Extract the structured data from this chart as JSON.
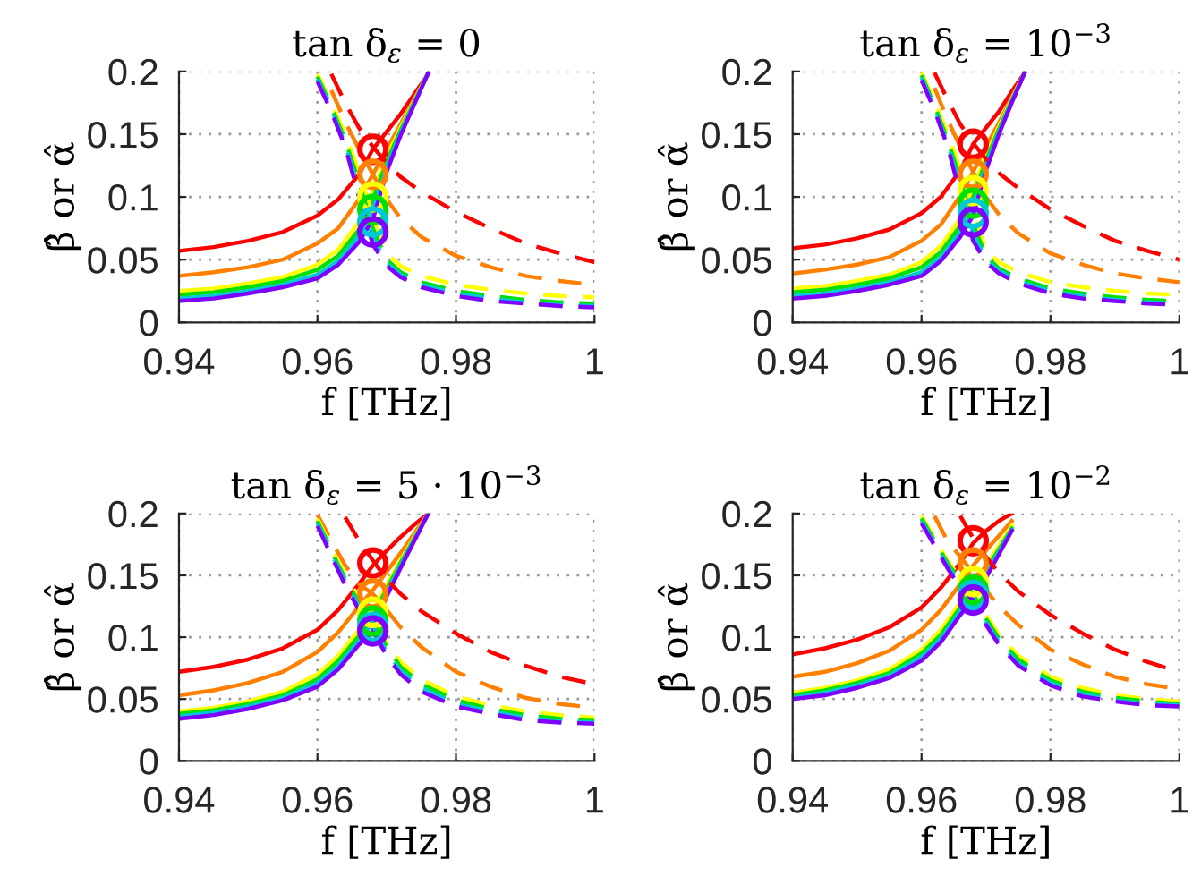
{
  "chart_data": [
    {
      "type": "line",
      "title": "tan δ$_{ε}$ = 0",
      "xlabel": "f [THz]",
      "ylabel": "β̂ or α̂",
      "xlim": [
        0.94,
        1.0
      ],
      "ylim": [
        0,
        0.2
      ],
      "xticks": [
        0.94,
        0.96,
        0.98,
        1
      ],
      "yticks": [
        0,
        0.05,
        0.1,
        0.15,
        0.2
      ],
      "grid": true,
      "series": [
        {
          "color": "#ff0000",
          "line_style": "solid",
          "x": [
            0.94,
            0.945,
            0.95,
            0.955,
            0.96,
            0.963,
            0.966,
            0.968,
            0.97,
            0.972,
            0.974,
            0.976
          ],
          "values": [
            0.057,
            0.06,
            0.065,
            0.072,
            0.085,
            0.098,
            0.118,
            0.138,
            0.152,
            0.166,
            0.182,
            0.198
          ]
        },
        {
          "color": "#ff8000",
          "line_style": "solid",
          "x": [
            0.94,
            0.945,
            0.95,
            0.955,
            0.96,
            0.963,
            0.966,
            0.968,
            0.97,
            0.972,
            0.974,
            0.976
          ],
          "values": [
            0.037,
            0.04,
            0.044,
            0.05,
            0.063,
            0.075,
            0.098,
            0.118,
            0.138,
            0.158,
            0.178,
            0.198
          ]
        },
        {
          "color": "#ffff00",
          "line_style": "solid",
          "x": [
            0.94,
            0.945,
            0.95,
            0.955,
            0.96,
            0.963,
            0.966,
            0.968,
            0.97,
            0.972,
            0.974,
            0.976
          ],
          "values": [
            0.025,
            0.027,
            0.031,
            0.036,
            0.046,
            0.058,
            0.08,
            0.105,
            0.132,
            0.155,
            0.177,
            0.199
          ]
        },
        {
          "color": "#00e000",
          "line_style": "solid",
          "x": [
            0.94,
            0.945,
            0.95,
            0.955,
            0.96,
            0.963,
            0.966,
            0.968,
            0.97,
            0.972,
            0.974,
            0.976
          ],
          "values": [
            0.022,
            0.024,
            0.028,
            0.033,
            0.042,
            0.053,
            0.074,
            0.098,
            0.128,
            0.153,
            0.176,
            0.199
          ]
        },
        {
          "color": "#00c8d8",
          "line_style": "solid",
          "x": [
            0.94,
            0.945,
            0.95,
            0.955,
            0.96,
            0.963,
            0.966,
            0.968,
            0.97,
            0.972,
            0.974,
            0.976
          ],
          "values": [
            0.019,
            0.021,
            0.025,
            0.03,
            0.038,
            0.049,
            0.069,
            0.09,
            0.124,
            0.151,
            0.175,
            0.199
          ]
        },
        {
          "color": "#8000ff",
          "line_style": "solid",
          "x": [
            0.94,
            0.945,
            0.95,
            0.955,
            0.96,
            0.963,
            0.966,
            0.968,
            0.97,
            0.972,
            0.974,
            0.976
          ],
          "values": [
            0.017,
            0.019,
            0.023,
            0.028,
            0.035,
            0.046,
            0.064,
            0.082,
            0.12,
            0.149,
            0.174,
            0.199
          ]
        },
        {
          "color": "#ff0000",
          "line_style": "dashed",
          "x": [
            0.962,
            0.964,
            0.966,
            0.968,
            0.97,
            0.972,
            0.975,
            0.98,
            0.985,
            0.99,
            0.995,
            1.0
          ],
          "values": [
            0.198,
            0.175,
            0.155,
            0.14,
            0.127,
            0.116,
            0.104,
            0.088,
            0.075,
            0.063,
            0.055,
            0.048
          ]
        },
        {
          "color": "#ff8000",
          "line_style": "dashed",
          "x": [
            0.962,
            0.964,
            0.966,
            0.968,
            0.97,
            0.972,
            0.975,
            0.98,
            0.985,
            0.99,
            0.995,
            1.0
          ],
          "values": [
            0.185,
            0.16,
            0.138,
            0.118,
            0.098,
            0.083,
            0.068,
            0.053,
            0.044,
            0.037,
            0.033,
            0.03
          ]
        },
        {
          "color": "#ffff00",
          "line_style": "dashed",
          "x": [
            0.96,
            0.962,
            0.964,
            0.966,
            0.968,
            0.97,
            0.972,
            0.975,
            0.98,
            0.985,
            0.99,
            0.995,
            1.0
          ],
          "values": [
            0.198,
            0.175,
            0.15,
            0.12,
            0.085,
            0.055,
            0.045,
            0.037,
            0.03,
            0.026,
            0.023,
            0.021,
            0.02
          ]
        },
        {
          "color": "#00e000",
          "line_style": "dashed",
          "x": [
            0.96,
            0.962,
            0.964,
            0.966,
            0.968,
            0.97,
            0.972,
            0.975,
            0.98,
            0.985,
            0.99,
            0.995,
            1.0
          ],
          "values": [
            0.196,
            0.172,
            0.145,
            0.112,
            0.075,
            0.05,
            0.04,
            0.032,
            0.025,
            0.021,
            0.018,
            0.016,
            0.015
          ]
        },
        {
          "color": "#00c8d8",
          "line_style": "dashed",
          "x": [
            0.96,
            0.962,
            0.964,
            0.966,
            0.968,
            0.97,
            0.972,
            0.975,
            0.98,
            0.985,
            0.99,
            0.995,
            1.0
          ],
          "values": [
            0.194,
            0.17,
            0.142,
            0.106,
            0.068,
            0.047,
            0.038,
            0.03,
            0.023,
            0.019,
            0.016,
            0.014,
            0.013
          ]
        },
        {
          "color": "#8000ff",
          "line_style": "dashed",
          "x": [
            0.96,
            0.962,
            0.964,
            0.966,
            0.968,
            0.97,
            0.972,
            0.975,
            0.98,
            0.985,
            0.99,
            0.995,
            1.0
          ],
          "values": [
            0.192,
            0.168,
            0.14,
            0.1,
            0.062,
            0.045,
            0.036,
            0.028,
            0.021,
            0.017,
            0.015,
            0.013,
            0.012
          ]
        },
        {
          "type": "scatter",
          "marker": "circle",
          "x": [
            0.968,
            0.968,
            0.968,
            0.968,
            0.968,
            0.968
          ],
          "values": [
            0.138,
            0.118,
            0.1,
            0.09,
            0.08,
            0.072
          ],
          "colors": [
            "#ff0000",
            "#ff8000",
            "#ffff00",
            "#00e000",
            "#00c8d8",
            "#8000ff"
          ]
        }
      ]
    },
    {
      "type": "line",
      "title": "tan δ$_{ε}$ = 10$^{−3}$",
      "xlabel": "f [THz]",
      "ylabel": "β̂ or α̂",
      "xlim": [
        0.94,
        1.0
      ],
      "ylim": [
        0,
        0.2
      ],
      "xticks": [
        0.94,
        0.96,
        0.98,
        1
      ],
      "yticks": [
        0,
        0.05,
        0.1,
        0.15,
        0.2
      ],
      "grid": true,
      "series": [
        {
          "color": "#ff0000",
          "line_style": "solid",
          "x": [
            0.94,
            0.945,
            0.95,
            0.955,
            0.96,
            0.963,
            0.966,
            0.968,
            0.97,
            0.972,
            0.974,
            0.976
          ],
          "values": [
            0.059,
            0.062,
            0.067,
            0.074,
            0.087,
            0.1,
            0.121,
            0.142,
            0.155,
            0.168,
            0.184,
            0.199
          ]
        },
        {
          "color": "#ff8000",
          "line_style": "solid",
          "x": [
            0.94,
            0.945,
            0.95,
            0.955,
            0.96,
            0.963,
            0.966,
            0.968,
            0.97,
            0.972,
            0.974,
            0.976
          ],
          "values": [
            0.039,
            0.042,
            0.046,
            0.052,
            0.065,
            0.078,
            0.101,
            0.12,
            0.14,
            0.159,
            0.179,
            0.199
          ]
        },
        {
          "color": "#ffff00",
          "line_style": "solid",
          "x": [
            0.94,
            0.945,
            0.95,
            0.955,
            0.96,
            0.963,
            0.966,
            0.968,
            0.97,
            0.972,
            0.974,
            0.976
          ],
          "values": [
            0.027,
            0.029,
            0.033,
            0.038,
            0.048,
            0.061,
            0.083,
            0.107,
            0.133,
            0.156,
            0.178,
            0.199
          ]
        },
        {
          "color": "#00e000",
          "line_style": "solid",
          "x": [
            0.94,
            0.945,
            0.95,
            0.955,
            0.96,
            0.963,
            0.966,
            0.968,
            0.97,
            0.972,
            0.974,
            0.976
          ],
          "values": [
            0.024,
            0.026,
            0.03,
            0.035,
            0.044,
            0.056,
            0.077,
            0.1,
            0.129,
            0.154,
            0.177,
            0.199
          ]
        },
        {
          "color": "#00c8d8",
          "line_style": "solid",
          "x": [
            0.94,
            0.945,
            0.95,
            0.955,
            0.96,
            0.963,
            0.966,
            0.968,
            0.97,
            0.972,
            0.974,
            0.976
          ],
          "values": [
            0.021,
            0.023,
            0.027,
            0.032,
            0.04,
            0.052,
            0.072,
            0.092,
            0.125,
            0.152,
            0.176,
            0.199
          ]
        },
        {
          "color": "#8000ff",
          "line_style": "solid",
          "x": [
            0.94,
            0.945,
            0.95,
            0.955,
            0.96,
            0.963,
            0.966,
            0.968,
            0.97,
            0.972,
            0.974,
            0.976
          ],
          "values": [
            0.019,
            0.021,
            0.025,
            0.03,
            0.037,
            0.049,
            0.068,
            0.085,
            0.121,
            0.15,
            0.175,
            0.199
          ]
        },
        {
          "color": "#ff0000",
          "line_style": "dashed",
          "x": [
            0.962,
            0.964,
            0.966,
            0.968,
            0.97,
            0.972,
            0.975,
            0.98,
            0.985,
            0.99,
            0.995,
            1.0
          ],
          "values": [
            0.199,
            0.178,
            0.158,
            0.143,
            0.13,
            0.119,
            0.107,
            0.09,
            0.077,
            0.065,
            0.057,
            0.05
          ]
        },
        {
          "color": "#ff8000",
          "line_style": "dashed",
          "x": [
            0.962,
            0.964,
            0.966,
            0.968,
            0.97,
            0.972,
            0.975,
            0.98,
            0.985,
            0.99,
            0.995,
            1.0
          ],
          "values": [
            0.187,
            0.162,
            0.14,
            0.12,
            0.1,
            0.086,
            0.071,
            0.055,
            0.046,
            0.039,
            0.035,
            0.032
          ]
        },
        {
          "color": "#ffff00",
          "line_style": "dashed",
          "x": [
            0.96,
            0.962,
            0.964,
            0.966,
            0.968,
            0.97,
            0.972,
            0.975,
            0.98,
            0.985,
            0.99,
            0.995,
            1.0
          ],
          "values": [
            0.199,
            0.176,
            0.151,
            0.122,
            0.088,
            0.058,
            0.048,
            0.04,
            0.032,
            0.028,
            0.025,
            0.023,
            0.022
          ]
        },
        {
          "color": "#00e000",
          "line_style": "dashed",
          "x": [
            0.96,
            0.962,
            0.964,
            0.966,
            0.968,
            0.97,
            0.972,
            0.975,
            0.98,
            0.985,
            0.99,
            0.995,
            1.0
          ],
          "values": [
            0.197,
            0.173,
            0.146,
            0.114,
            0.078,
            0.053,
            0.043,
            0.035,
            0.027,
            0.023,
            0.02,
            0.018,
            0.017
          ]
        },
        {
          "color": "#00c8d8",
          "line_style": "dashed",
          "x": [
            0.96,
            0.962,
            0.964,
            0.966,
            0.968,
            0.97,
            0.972,
            0.975,
            0.98,
            0.985,
            0.99,
            0.995,
            1.0
          ],
          "values": [
            0.195,
            0.171,
            0.143,
            0.108,
            0.071,
            0.05,
            0.041,
            0.033,
            0.025,
            0.021,
            0.018,
            0.016,
            0.015
          ]
        },
        {
          "color": "#8000ff",
          "line_style": "dashed",
          "x": [
            0.96,
            0.962,
            0.964,
            0.966,
            0.968,
            0.97,
            0.972,
            0.975,
            0.98,
            0.985,
            0.99,
            0.995,
            1.0
          ],
          "values": [
            0.193,
            0.169,
            0.141,
            0.102,
            0.065,
            0.048,
            0.039,
            0.031,
            0.023,
            0.019,
            0.017,
            0.015,
            0.014
          ]
        },
        {
          "type": "scatter",
          "marker": "circle",
          "x": [
            0.968,
            0.968,
            0.968,
            0.968,
            0.968,
            0.968
          ],
          "values": [
            0.142,
            0.118,
            0.105,
            0.095,
            0.087,
            0.08
          ],
          "colors": [
            "#ff0000",
            "#ff8000",
            "#ffff00",
            "#00e000",
            "#00c8d8",
            "#8000ff"
          ]
        }
      ]
    },
    {
      "type": "line",
      "title": "tan δ$_{ε}$ = 5 · 10$^{−3}$",
      "xlabel": "f [THz]",
      "ylabel": "β̂ or α̂",
      "xlim": [
        0.94,
        1.0
      ],
      "ylim": [
        0,
        0.2
      ],
      "xticks": [
        0.94,
        0.96,
        0.98,
        1
      ],
      "yticks": [
        0,
        0.05,
        0.1,
        0.15,
        0.2
      ],
      "grid": true,
      "series": [
        {
          "color": "#ff0000",
          "line_style": "solid",
          "x": [
            0.94,
            0.945,
            0.95,
            0.955,
            0.96,
            0.963,
            0.966,
            0.968,
            0.97,
            0.972,
            0.974,
            0.976
          ],
          "values": [
            0.072,
            0.076,
            0.082,
            0.091,
            0.106,
            0.122,
            0.143,
            0.158,
            0.17,
            0.181,
            0.191,
            0.2
          ]
        },
        {
          "color": "#ff8000",
          "line_style": "solid",
          "x": [
            0.94,
            0.945,
            0.95,
            0.955,
            0.96,
            0.963,
            0.966,
            0.968,
            0.97,
            0.972,
            0.974,
            0.976
          ],
          "values": [
            0.053,
            0.057,
            0.063,
            0.072,
            0.088,
            0.104,
            0.125,
            0.138,
            0.153,
            0.168,
            0.184,
            0.2
          ]
        },
        {
          "color": "#ffff00",
          "line_style": "solid",
          "x": [
            0.94,
            0.945,
            0.95,
            0.955,
            0.96,
            0.963,
            0.966,
            0.968,
            0.97,
            0.972,
            0.974,
            0.976
          ],
          "values": [
            0.04,
            0.043,
            0.048,
            0.056,
            0.07,
            0.085,
            0.106,
            0.122,
            0.142,
            0.162,
            0.181,
            0.2
          ]
        },
        {
          "color": "#00e000",
          "line_style": "solid",
          "x": [
            0.94,
            0.945,
            0.95,
            0.955,
            0.96,
            0.963,
            0.966,
            0.968,
            0.97,
            0.972,
            0.974,
            0.976
          ],
          "values": [
            0.038,
            0.041,
            0.046,
            0.053,
            0.066,
            0.081,
            0.101,
            0.117,
            0.139,
            0.16,
            0.18,
            0.2
          ]
        },
        {
          "color": "#00c8d8",
          "line_style": "solid",
          "x": [
            0.94,
            0.945,
            0.95,
            0.955,
            0.96,
            0.963,
            0.966,
            0.968,
            0.97,
            0.972,
            0.974,
            0.976
          ],
          "values": [
            0.036,
            0.039,
            0.044,
            0.051,
            0.063,
            0.077,
            0.097,
            0.112,
            0.136,
            0.158,
            0.179,
            0.2
          ]
        },
        {
          "color": "#8000ff",
          "line_style": "solid",
          "x": [
            0.94,
            0.945,
            0.95,
            0.955,
            0.96,
            0.963,
            0.966,
            0.968,
            0.97,
            0.972,
            0.974,
            0.976
          ],
          "values": [
            0.034,
            0.037,
            0.042,
            0.049,
            0.06,
            0.074,
            0.094,
            0.105,
            0.133,
            0.156,
            0.178,
            0.2
          ]
        },
        {
          "color": "#ff0000",
          "line_style": "dashed",
          "x": [
            0.964,
            0.966,
            0.968,
            0.97,
            0.972,
            0.975,
            0.98,
            0.985,
            0.99,
            0.995,
            1.0
          ],
          "values": [
            0.197,
            0.178,
            0.162,
            0.147,
            0.135,
            0.121,
            0.103,
            0.088,
            0.077,
            0.068,
            0.062
          ]
        },
        {
          "color": "#ff8000",
          "line_style": "dashed",
          "x": [
            0.96,
            0.962,
            0.964,
            0.966,
            0.968,
            0.97,
            0.972,
            0.975,
            0.98,
            0.985,
            0.99,
            0.995,
            1.0
          ],
          "values": [
            0.199,
            0.178,
            0.158,
            0.143,
            0.135,
            0.122,
            0.108,
            0.092,
            0.072,
            0.06,
            0.051,
            0.046,
            0.043
          ]
        },
        {
          "color": "#ffff00",
          "line_style": "dashed",
          "x": [
            0.96,
            0.962,
            0.964,
            0.966,
            0.968,
            0.97,
            0.972,
            0.975,
            0.98,
            0.985,
            0.99,
            0.995,
            1.0
          ],
          "values": [
            0.196,
            0.172,
            0.15,
            0.132,
            0.118,
            0.096,
            0.08,
            0.066,
            0.052,
            0.045,
            0.04,
            0.037,
            0.035
          ]
        },
        {
          "color": "#00e000",
          "line_style": "dashed",
          "x": [
            0.96,
            0.962,
            0.964,
            0.966,
            0.968,
            0.97,
            0.972,
            0.975,
            0.98,
            0.985,
            0.99,
            0.995,
            1.0
          ],
          "values": [
            0.194,
            0.17,
            0.147,
            0.128,
            0.114,
            0.092,
            0.076,
            0.062,
            0.049,
            0.042,
            0.037,
            0.034,
            0.033
          ]
        },
        {
          "color": "#00c8d8",
          "line_style": "dashed",
          "x": [
            0.96,
            0.962,
            0.964,
            0.966,
            0.968,
            0.97,
            0.972,
            0.975,
            0.98,
            0.985,
            0.99,
            0.995,
            1.0
          ],
          "values": [
            0.192,
            0.168,
            0.145,
            0.125,
            0.109,
            0.088,
            0.073,
            0.059,
            0.046,
            0.04,
            0.035,
            0.032,
            0.031
          ]
        },
        {
          "color": "#8000ff",
          "line_style": "dashed",
          "x": [
            0.96,
            0.962,
            0.964,
            0.966,
            0.968,
            0.97,
            0.972,
            0.975,
            0.98,
            0.985,
            0.99,
            0.995,
            1.0
          ],
          "values": [
            0.19,
            0.166,
            0.142,
            0.122,
            0.105,
            0.085,
            0.07,
            0.056,
            0.044,
            0.038,
            0.033,
            0.031,
            0.03
          ]
        },
        {
          "type": "scatter",
          "marker": "circle",
          "x": [
            0.968,
            0.968,
            0.968,
            0.968,
            0.968,
            0.968
          ],
          "values": [
            0.16,
            0.135,
            0.12,
            0.113,
            0.108,
            0.105
          ],
          "colors": [
            "#ff0000",
            "#ff8000",
            "#ffff00",
            "#00e000",
            "#00c8d8",
            "#8000ff"
          ]
        }
      ]
    },
    {
      "type": "line",
      "title": "tan δ$_{ε}$ = 10$^{−2}$",
      "xlabel": "f [THz]",
      "ylabel": "β̂ or α̂",
      "xlim": [
        0.94,
        1.0
      ],
      "ylim": [
        0,
        0.2
      ],
      "xticks": [
        0.94,
        0.96,
        0.98,
        1
      ],
      "yticks": [
        0,
        0.05,
        0.1,
        0.15,
        0.2
      ],
      "grid": true,
      "series": [
        {
          "color": "#ff0000",
          "line_style": "solid",
          "x": [
            0.94,
            0.945,
            0.95,
            0.955,
            0.96,
            0.963,
            0.966,
            0.968,
            0.97,
            0.972,
            0.974
          ],
          "values": [
            0.086,
            0.091,
            0.098,
            0.108,
            0.124,
            0.14,
            0.16,
            0.176,
            0.186,
            0.194,
            0.2
          ]
        },
        {
          "color": "#ff8000",
          "line_style": "solid",
          "x": [
            0.94,
            0.945,
            0.95,
            0.955,
            0.96,
            0.963,
            0.966,
            0.968,
            0.97,
            0.972,
            0.974
          ],
          "values": [
            0.068,
            0.072,
            0.079,
            0.089,
            0.106,
            0.122,
            0.143,
            0.158,
            0.17,
            0.182,
            0.194
          ]
        },
        {
          "color": "#ffff00",
          "line_style": "solid",
          "x": [
            0.94,
            0.945,
            0.95,
            0.955,
            0.96,
            0.963,
            0.966,
            0.968,
            0.97,
            0.972,
            0.974
          ],
          "values": [
            0.055,
            0.059,
            0.065,
            0.074,
            0.09,
            0.106,
            0.128,
            0.142,
            0.158,
            0.174,
            0.19
          ]
        },
        {
          "color": "#00e000",
          "line_style": "solid",
          "x": [
            0.94,
            0.945,
            0.95,
            0.955,
            0.96,
            0.963,
            0.966,
            0.968,
            0.97,
            0.972,
            0.974
          ],
          "values": [
            0.053,
            0.057,
            0.063,
            0.071,
            0.087,
            0.102,
            0.124,
            0.137,
            0.154,
            0.171,
            0.188
          ]
        },
        {
          "color": "#00c8d8",
          "line_style": "solid",
          "x": [
            0.94,
            0.945,
            0.95,
            0.955,
            0.96,
            0.963,
            0.966,
            0.968,
            0.97,
            0.972,
            0.974
          ],
          "values": [
            0.051,
            0.055,
            0.061,
            0.069,
            0.084,
            0.099,
            0.121,
            0.133,
            0.151,
            0.169,
            0.187
          ]
        },
        {
          "color": "#8000ff",
          "line_style": "solid",
          "x": [
            0.94,
            0.945,
            0.95,
            0.955,
            0.96,
            0.963,
            0.966,
            0.968,
            0.97,
            0.972,
            0.974
          ],
          "values": [
            0.05,
            0.053,
            0.059,
            0.067,
            0.081,
            0.096,
            0.118,
            0.13,
            0.148,
            0.167,
            0.186
          ]
        },
        {
          "color": "#ff0000",
          "line_style": "dashed",
          "x": [
            0.966,
            0.968,
            0.97,
            0.972,
            0.975,
            0.98,
            0.985,
            0.99,
            0.995,
            1.0
          ],
          "values": [
            0.198,
            0.18,
            0.165,
            0.152,
            0.137,
            0.118,
            0.103,
            0.09,
            0.08,
            0.072
          ]
        },
        {
          "color": "#ff8000",
          "line_style": "dashed",
          "x": [
            0.962,
            0.964,
            0.966,
            0.968,
            0.97,
            0.972,
            0.975,
            0.98,
            0.985,
            0.99,
            0.995,
            1.0
          ],
          "values": [
            0.198,
            0.178,
            0.165,
            0.152,
            0.138,
            0.125,
            0.11,
            0.09,
            0.078,
            0.068,
            0.062,
            0.058
          ]
        },
        {
          "color": "#ffff00",
          "line_style": "dashed",
          "x": [
            0.96,
            0.962,
            0.964,
            0.966,
            0.968,
            0.97,
            0.972,
            0.975,
            0.98,
            0.985,
            0.99,
            0.995,
            1.0
          ],
          "values": [
            0.198,
            0.18,
            0.162,
            0.148,
            0.138,
            0.118,
            0.102,
            0.085,
            0.068,
            0.059,
            0.053,
            0.05,
            0.048
          ]
        },
        {
          "color": "#00e000",
          "line_style": "dashed",
          "x": [
            0.96,
            0.962,
            0.964,
            0.966,
            0.968,
            0.97,
            0.972,
            0.975,
            0.98,
            0.985,
            0.99,
            0.995,
            1.0
          ],
          "values": [
            0.196,
            0.178,
            0.16,
            0.146,
            0.135,
            0.115,
            0.099,
            0.082,
            0.065,
            0.056,
            0.051,
            0.048,
            0.046
          ]
        },
        {
          "color": "#00c8d8",
          "line_style": "dashed",
          "x": [
            0.96,
            0.962,
            0.964,
            0.966,
            0.968,
            0.97,
            0.972,
            0.975,
            0.98,
            0.985,
            0.99,
            0.995,
            1.0
          ],
          "values": [
            0.194,
            0.176,
            0.158,
            0.143,
            0.132,
            0.112,
            0.096,
            0.079,
            0.063,
            0.054,
            0.049,
            0.046,
            0.045
          ]
        },
        {
          "color": "#8000ff",
          "line_style": "dashed",
          "x": [
            0.96,
            0.962,
            0.964,
            0.966,
            0.968,
            0.97,
            0.972,
            0.975,
            0.98,
            0.985,
            0.99,
            0.995,
            1.0
          ],
          "values": [
            0.192,
            0.174,
            0.156,
            0.14,
            0.13,
            0.11,
            0.094,
            0.077,
            0.061,
            0.052,
            0.048,
            0.045,
            0.044
          ]
        },
        {
          "type": "scatter",
          "marker": "circle",
          "x": [
            0.968,
            0.968,
            0.968,
            0.968,
            0.968,
            0.968
          ],
          "values": [
            0.178,
            0.16,
            0.145,
            0.138,
            0.134,
            0.13
          ],
          "colors": [
            "#ff0000",
            "#ff8000",
            "#ffff00",
            "#00e000",
            "#00c8d8",
            "#8000ff"
          ]
        }
      ]
    }
  ]
}
